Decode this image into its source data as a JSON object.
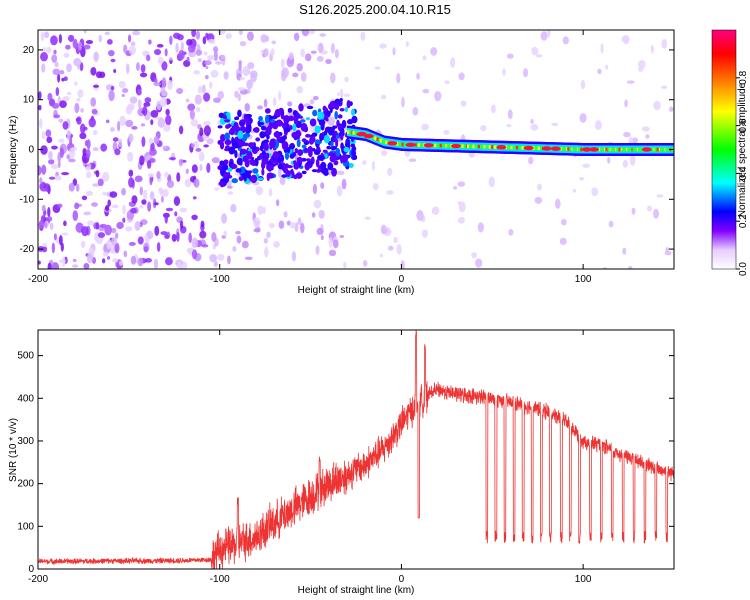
{
  "title": "S126.2025.200.04.10.R15",
  "chart_data": [
    {
      "type": "heatmap",
      "xlabel": "Height of straight line (km)",
      "ylabel": "Frequency (Hz)",
      "xlim": [
        -200,
        150
      ],
      "ylim": [
        -24,
        24
      ],
      "x_ticks": [
        -200,
        -100,
        0,
        100
      ],
      "x_tick_labels": [
        "-200",
        "-100",
        "0",
        "100"
      ],
      "y_ticks": [
        -20,
        -10,
        0,
        10,
        20
      ],
      "y_tick_labels": [
        "-20",
        "-10",
        "0",
        "10",
        "20"
      ],
      "colorbar": {
        "label": "Normalized spectral amplitude",
        "range": [
          0,
          1
        ],
        "ticks": [
          0.0,
          0.2,
          0.4,
          0.6,
          0.8
        ],
        "tick_labels": [
          "0.0",
          "0.2",
          "0.4",
          "0.6",
          "0.8"
        ],
        "colors": [
          "#ffffff",
          "#e6ccff",
          "#8000ff",
          "#0000ff",
          "#00ffff",
          "#00ff00",
          "#ffff00",
          "#ff8000",
          "#ff0000",
          "#ff0080"
        ]
      },
      "signal_track": [
        {
          "x": -100,
          "freq": 0.0
        },
        {
          "x": -40,
          "freq": 2.0
        },
        {
          "x": -30,
          "freq": 3.5
        },
        {
          "x": -20,
          "freq": 3.0
        },
        {
          "x": -10,
          "freq": 1.5
        },
        {
          "x": 0,
          "freq": 1.0
        },
        {
          "x": 50,
          "freq": 0.5
        },
        {
          "x": 100,
          "freq": 0.0
        },
        {
          "x": 150,
          "freq": 0.0
        }
      ]
    },
    {
      "type": "line",
      "xlabel": "Height of straight line (km)",
      "ylabel": "SNR (10 * v/v)",
      "xlim": [
        -200,
        150
      ],
      "ylim": [
        0,
        560
      ],
      "x_ticks": [
        -200,
        -100,
        0,
        100
      ],
      "x_tick_labels": [
        "-200",
        "-100",
        "0",
        "100"
      ],
      "y_ticks": [
        0,
        100,
        200,
        300,
        400,
        500
      ],
      "y_tick_labels": [
        "0",
        "100",
        "200",
        "300",
        "400",
        "500"
      ],
      "line_color": "#ee3333",
      "series": [
        {
          "x": [
            -200,
            -180,
            -160,
            -140,
            -120,
            -105,
            -100,
            -90,
            -80,
            -70,
            -60,
            -50,
            -40,
            -30,
            -20,
            -10,
            -5,
            0,
            5,
            10,
            15,
            20,
            30,
            40,
            50,
            60,
            70,
            80,
            90,
            100,
            110,
            120,
            130,
            140,
            150
          ],
          "values": [
            18,
            18,
            19,
            19,
            20,
            22,
            45,
            60,
            75,
            110,
            140,
            170,
            200,
            220,
            245,
            280,
            310,
            340,
            370,
            390,
            410,
            420,
            410,
            405,
            400,
            390,
            380,
            370,
            350,
            300,
            290,
            270,
            255,
            235,
            225
          ]
        }
      ]
    }
  ]
}
